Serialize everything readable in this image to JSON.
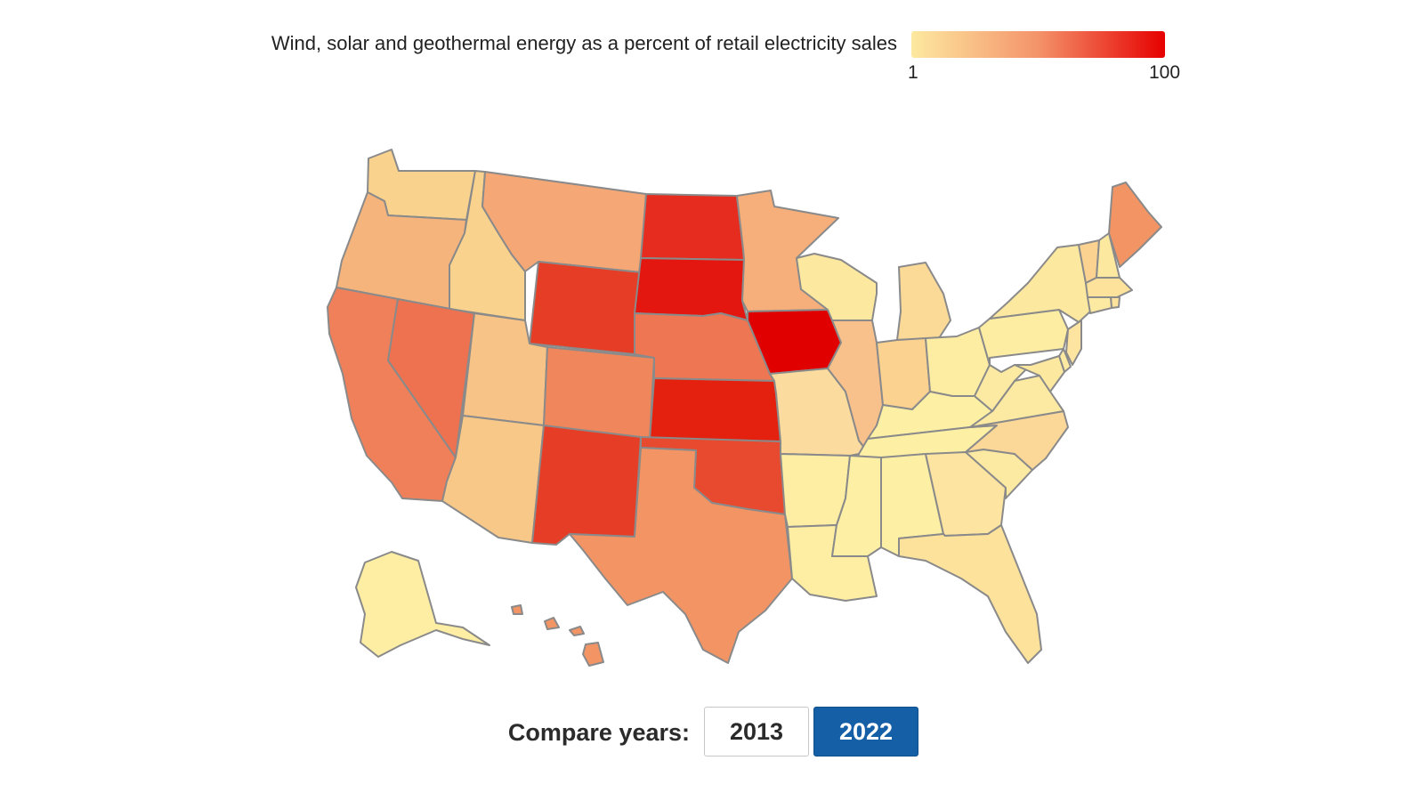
{
  "legend": {
    "title": "Wind, solar and geothermal energy as a percent of retail electricity sales",
    "min_label": "1",
    "max_label": "100",
    "color_low": "#fde9a0",
    "color_mid": "#f4936a",
    "color_high": "#e60000"
  },
  "controls": {
    "compare_label": "Compare years:",
    "years": [
      "2013",
      "2022"
    ],
    "selected_year": "2022",
    "selected_color": "#155fa6"
  },
  "map_data": {
    "value_scale": "1 to 100 percent",
    "states": [
      {
        "id": "WA",
        "fill": "#f9d28e"
      },
      {
        "id": "OR",
        "fill": "#f6b47d"
      },
      {
        "id": "CA",
        "fill": "#f0805a"
      },
      {
        "id": "ID",
        "fill": "#f9d28e"
      },
      {
        "id": "NV",
        "fill": "#ee7150"
      },
      {
        "id": "MT",
        "fill": "#f5a876"
      },
      {
        "id": "WY",
        "fill": "#e63e26"
      },
      {
        "id": "UT",
        "fill": "#f7c386"
      },
      {
        "id": "AZ",
        "fill": "#f8c889"
      },
      {
        "id": "CO",
        "fill": "#f0865c"
      },
      {
        "id": "NM",
        "fill": "#e63e26"
      },
      {
        "id": "ND",
        "fill": "#e52c1f"
      },
      {
        "id": "SD",
        "fill": "#e3170f"
      },
      {
        "id": "NE",
        "fill": "#ee7652"
      },
      {
        "id": "KS",
        "fill": "#e4210f"
      },
      {
        "id": "OK",
        "fill": "#e74a2e"
      },
      {
        "id": "TX",
        "fill": "#f39465"
      },
      {
        "id": "MN",
        "fill": "#f6af7a"
      },
      {
        "id": "IA",
        "fill": "#e10000"
      },
      {
        "id": "MO",
        "fill": "#fbdc9e"
      },
      {
        "id": "AR",
        "fill": "#fdeea3"
      },
      {
        "id": "LA",
        "fill": "#fdeea3"
      },
      {
        "id": "WI",
        "fill": "#fde8a0"
      },
      {
        "id": "IL",
        "fill": "#f8c08a"
      },
      {
        "id": "MI",
        "fill": "#fbd996"
      },
      {
        "id": "IN",
        "fill": "#fbd290"
      },
      {
        "id": "OH",
        "fill": "#fdeda3"
      },
      {
        "id": "KY",
        "fill": "#fdf0a5"
      },
      {
        "id": "TN",
        "fill": "#fdf0a5"
      },
      {
        "id": "MS",
        "fill": "#fdf0a5"
      },
      {
        "id": "AL",
        "fill": "#fdf0a5"
      },
      {
        "id": "GA",
        "fill": "#fde4a0"
      },
      {
        "id": "FL",
        "fill": "#fde29c"
      },
      {
        "id": "SC",
        "fill": "#fdeaa2"
      },
      {
        "id": "NC",
        "fill": "#fbd798"
      },
      {
        "id": "VA",
        "fill": "#fdeaa2"
      },
      {
        "id": "WV",
        "fill": "#fdeaa2"
      },
      {
        "id": "PA",
        "fill": "#fdeda3"
      },
      {
        "id": "NY",
        "fill": "#fde8a0"
      },
      {
        "id": "VT",
        "fill": "#fbd290"
      },
      {
        "id": "NH",
        "fill": "#fde8a0"
      },
      {
        "id": "ME",
        "fill": "#f39465"
      },
      {
        "id": "MA",
        "fill": "#fde29c"
      },
      {
        "id": "RI",
        "fill": "#fde29c"
      },
      {
        "id": "CT",
        "fill": "#fdeaa2"
      },
      {
        "id": "NJ",
        "fill": "#fde4a0"
      },
      {
        "id": "DE",
        "fill": "#fdeaa2"
      },
      {
        "id": "MD",
        "fill": "#fde8a0"
      },
      {
        "id": "AK",
        "fill": "#fdeea3"
      },
      {
        "id": "HI",
        "fill": "#f39465"
      }
    ]
  }
}
